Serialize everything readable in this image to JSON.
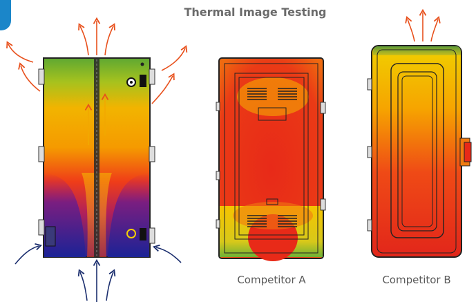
{
  "header": {
    "title": "Thermal Image Testing"
  },
  "panels": [
    {
      "caption": ""
    },
    {
      "caption": "Competitor A"
    },
    {
      "caption": "Competitor B"
    }
  ],
  "colors": {
    "accent": "#1b86c9",
    "hot": "#e82a18",
    "warm": "#f6b400",
    "cool": "#1a2a8a",
    "arrow_hot": "#e8501c",
    "arrow_cool": "#1b2e6e"
  }
}
